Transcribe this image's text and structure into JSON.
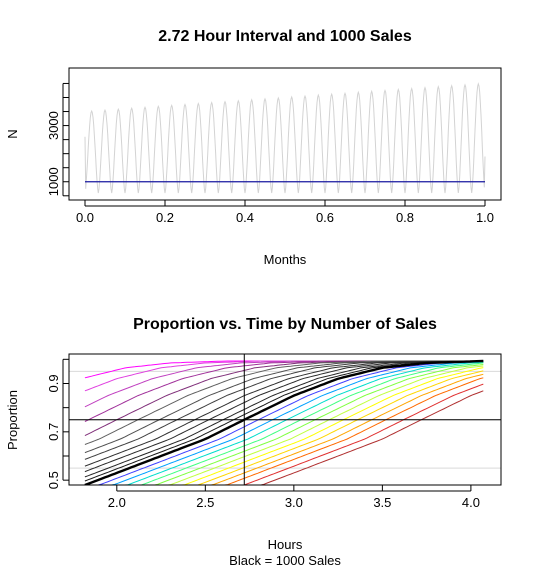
{
  "chart_data": [
    {
      "type": "line",
      "title": "2.72 Hour Interval and 1000 Sales",
      "xlabel": "Months",
      "ylabel": "N",
      "xlim": [
        -0.04,
        1.04
      ],
      "ylim": [
        350,
        5050
      ],
      "x_ticks": [
        0.0,
        0.2,
        0.4,
        0.6,
        0.8,
        1.0
      ],
      "x_tick_labels": [
        "0.0",
        "0.2",
        "0.4",
        "0.6",
        "0.8",
        "1.0"
      ],
      "y_ticks": [
        1000,
        3000
      ],
      "y_tick_labels": [
        "1000",
        "3000"
      ],
      "series": [
        {
          "kind": "periodic-demand",
          "color": "#d3d3d3",
          "cycles": 30,
          "x_start": 0.0,
          "x_end": 1.0,
          "trough": 600,
          "peak_start": 3500,
          "peak_end": 4500,
          "end_value": 1900
        },
        {
          "kind": "reference",
          "color": "#1a1aa0",
          "x": [
            0.0,
            1.0
          ],
          "y": [
            1000,
            1000
          ]
        }
      ]
    },
    {
      "type": "line",
      "title": "Proportion vs. Time by Number of Sales",
      "xlabel": "Hours",
      "ylabel": "Proportion",
      "caption": "Black = 1000 Sales",
      "xlim": [
        1.73,
        4.17
      ],
      "ylim": [
        0.48,
        1.022
      ],
      "x_ticks": [
        2.0,
        2.5,
        3.0,
        3.5,
        4.0
      ],
      "x_tick_labels": [
        "2.0",
        "2.5",
        "3.0",
        "3.5",
        "4.0"
      ],
      "y_ticks": [
        0.5,
        0.7,
        0.9
      ],
      "y_tick_labels": [
        "0.5",
        "0.7",
        "0.9"
      ],
      "gridlines_y": [
        0.55,
        0.75,
        0.95
      ],
      "reference_lines": {
        "vertical_x": 2.72,
        "horizontal_y": 0.75
      },
      "x_range": [
        1.82,
        4.07
      ],
      "highlight": {
        "color": "#000000",
        "x": [
          1.82,
          2.0,
          2.25,
          2.5,
          2.72,
          3.0,
          3.25,
          3.5,
          3.75,
          4.07
        ],
        "y": [
          0.48,
          0.53,
          0.6,
          0.67,
          0.75,
          0.85,
          0.92,
          0.965,
          0.985,
          0.993
        ]
      },
      "curve_shifts": [
        -1.45,
        -1.25,
        -1.05,
        -0.88,
        -0.72,
        -0.6,
        -0.48,
        -0.38,
        -0.28,
        -0.2,
        -0.12,
        -0.06,
        0.0,
        0.08,
        0.16,
        0.24,
        0.32,
        0.4,
        0.48,
        0.56,
        0.64,
        0.72,
        0.8,
        0.9,
        1.0
      ],
      "curve_colors": [
        "#ff00ff",
        "#e040e0",
        "#c040c0",
        "#a0309a",
        "#80307a",
        "#606060",
        "#505050",
        "#404040",
        "#303030",
        "#2b2b2b",
        "#262626",
        "#1a1a1a",
        "#000000",
        "#4040ff",
        "#00a0ff",
        "#00ddcc",
        "#40ff80",
        "#80ff40",
        "#c0ff40",
        "#ffff00",
        "#ffd700",
        "#ffa500",
        "#ff6a00",
        "#e03030",
        "#b03030"
      ]
    }
  ]
}
